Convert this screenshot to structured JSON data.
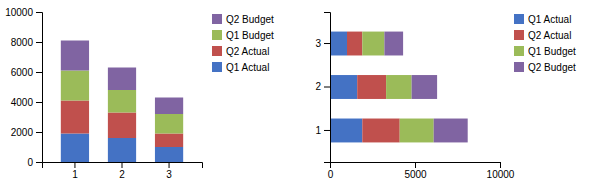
{
  "chart_data": [
    {
      "type": "bar",
      "stacked": true,
      "categories": [
        "1",
        "2",
        "3"
      ],
      "series": [
        {
          "name": "Q1 Actual",
          "color": "#4472C4",
          "values": [
            1900,
            1600,
            1000
          ]
        },
        {
          "name": "Q2 Actual",
          "color": "#C0504D",
          "values": [
            2200,
            1700,
            900
          ]
        },
        {
          "name": "Q1 Budget",
          "color": "#9BBB59",
          "values": [
            2000,
            1500,
            1300
          ]
        },
        {
          "name": "Q2 Budget",
          "color": "#8064A2",
          "values": [
            2000,
            1500,
            1100
          ]
        }
      ],
      "ylim": [
        0,
        10000
      ],
      "yticks": [
        0,
        2000,
        4000,
        6000,
        8000,
        10000
      ],
      "grid": false,
      "legend": "right"
    },
    {
      "type": "bar",
      "orientation": "horizontal",
      "stacked": true,
      "categories": [
        "1",
        "2",
        "3"
      ],
      "series": [
        {
          "name": "Q1 Actual",
          "color": "#4472C4",
          "values": [
            1900,
            1600,
            1000
          ]
        },
        {
          "name": "Q2 Actual",
          "color": "#C0504D",
          "values": [
            2200,
            1700,
            900
          ]
        },
        {
          "name": "Q1 Budget",
          "color": "#9BBB59",
          "values": [
            2000,
            1500,
            1300
          ]
        },
        {
          "name": "Q2 Budget",
          "color": "#8064A2",
          "values": [
            2000,
            1500,
            1100
          ]
        }
      ],
      "xlim": [
        0,
        10000
      ],
      "xticks": [
        0,
        5000,
        10000
      ],
      "grid": false,
      "legend": "right"
    }
  ]
}
